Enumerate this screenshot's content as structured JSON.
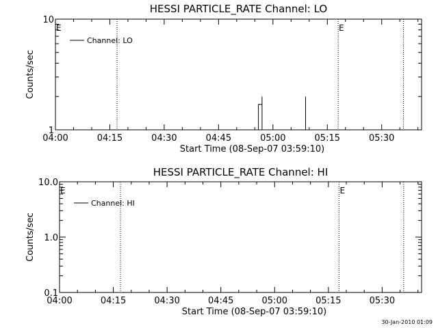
{
  "footer": {
    "date": "30-Jan-2010 01:09"
  },
  "chart_data": [
    {
      "type": "line",
      "title": "HESSI PARTICLE_RATE Channel: LO",
      "xlabel": "Start Time (08-Sep-07 03:59:10)",
      "ylabel": "Counts/sec",
      "xlim": [
        "04:00",
        "05:41"
      ],
      "ylim": [
        1,
        10
      ],
      "y_scale": "log",
      "x_ticks": [
        "04:00",
        "04:15",
        "04:30",
        "04:45",
        "05:00",
        "05:15",
        "05:30"
      ],
      "y_ticks": [
        {
          "value": 1,
          "label": "1"
        },
        {
          "value": 10,
          "label": "10"
        }
      ],
      "legend": {
        "position": "top-left",
        "entries": [
          "Channel: LO"
        ]
      },
      "vlines": [
        {
          "x": "04:17",
          "style": "dotted",
          "label": ""
        },
        {
          "x": "05:18",
          "style": "dotted",
          "label": "E"
        },
        {
          "x": "05:36",
          "style": "dotted",
          "label": ""
        }
      ],
      "edge_labels": [
        {
          "x": "04:00",
          "label": "E"
        }
      ],
      "series": [
        {
          "name": "Channel: LO",
          "points": [
            [
              "04:56",
              1
            ],
            [
              "04:56",
              1.7
            ],
            [
              "04:57",
              1.7
            ],
            [
              "04:57",
              2
            ],
            [
              "04:57",
              1
            ],
            [
              "05:09",
              1
            ],
            [
              "05:09",
              1.7
            ],
            [
              "05:09",
              2
            ],
            [
              "05:09",
              1
            ]
          ]
        }
      ]
    },
    {
      "type": "line",
      "title": "HESSI PARTICLE_RATE Channel: HI",
      "xlabel": "Start Time (08-Sep-07 03:59:10)",
      "ylabel": "Counts/sec",
      "xlim": [
        "04:00",
        "05:41"
      ],
      "ylim": [
        0.1,
        10
      ],
      "y_scale": "log",
      "x_ticks": [
        "04:00",
        "04:15",
        "04:30",
        "04:45",
        "05:00",
        "05:15",
        "05:30"
      ],
      "y_ticks": [
        {
          "value": 0.1,
          "label": "0.1"
        },
        {
          "value": 1,
          "label": "1.0"
        },
        {
          "value": 10,
          "label": "10.0"
        }
      ],
      "legend": {
        "position": "top-left",
        "entries": [
          "Channel: HI"
        ]
      },
      "vlines": [
        {
          "x": "04:17",
          "style": "dotted",
          "label": ""
        },
        {
          "x": "05:18",
          "style": "dotted",
          "label": "E"
        },
        {
          "x": "05:36",
          "style": "dotted",
          "label": ""
        }
      ],
      "edge_labels": [
        {
          "x": "04:00",
          "label": "E"
        }
      ],
      "series": [
        {
          "name": "Channel: HI",
          "points": []
        }
      ]
    }
  ]
}
